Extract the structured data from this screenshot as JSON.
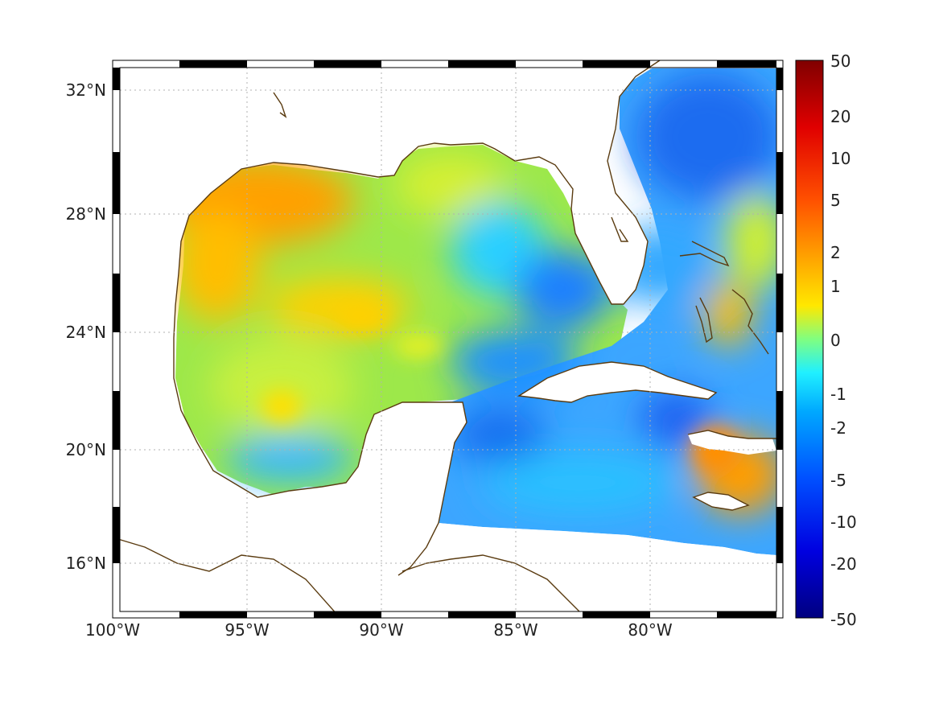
{
  "map": {
    "lon_range": [
      -100,
      -75
    ],
    "lat_range": [
      14.5,
      33
    ],
    "lon_ticks": [
      {
        "value": -100,
        "label": "100°W"
      },
      {
        "value": -95,
        "label": "95°W"
      },
      {
        "value": -90,
        "label": "90°W"
      },
      {
        "value": -85,
        "label": "85°W"
      },
      {
        "value": -80,
        "label": "80°W"
      }
    ],
    "lat_ticks": [
      {
        "value": 32,
        "label": "32°N"
      },
      {
        "value": 28,
        "label": "28°N"
      },
      {
        "value": 24,
        "label": "24°N"
      },
      {
        "value": 20,
        "label": "20°N"
      },
      {
        "value": 16,
        "label": "16°N"
      }
    ],
    "grid": "dotted",
    "frame": "alternating black/white ticks",
    "coast_color": "#5a3b10",
    "colormap": "jet"
  },
  "colorbar": {
    "position": "right",
    "tick_labels": [
      "50",
      "20",
      "10",
      "5",
      "2",
      "1",
      "0",
      "-1",
      "-2",
      "-5",
      "-10",
      "-20",
      "-50"
    ]
  }
}
